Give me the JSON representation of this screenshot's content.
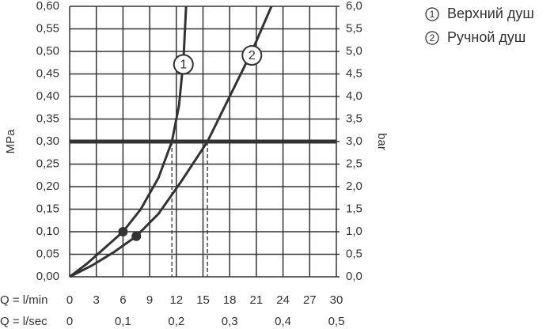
{
  "chart_data": {
    "type": "line",
    "y_label": "MPa",
    "y2_label": "bar",
    "x_label": "Q = l/min",
    "x2_label": "Q = l/sec",
    "xlim": [
      0,
      30
    ],
    "xticks": [
      0,
      3,
      6,
      9,
      12,
      15,
      18,
      21,
      24,
      27,
      30
    ],
    "x2lim": [
      0,
      0.5
    ],
    "x2ticks": [
      0,
      {
        "value": 0.1,
        "label": "0,1"
      },
      {
        "value": 0.2,
        "label": "0,2"
      },
      {
        "value": 0.3,
        "label": "0,3"
      },
      {
        "value": 0.4,
        "label": "0,4"
      },
      {
        "value": 0.5,
        "label": "0,5"
      }
    ],
    "ylim": [
      0,
      0.6
    ],
    "yticks": [
      {
        "value": 0,
        "label": "0,00"
      },
      {
        "value": 0.05,
        "label": "0,05"
      },
      {
        "value": 0.1,
        "label": "0,10"
      },
      {
        "value": 0.15,
        "label": "0,15"
      },
      {
        "value": 0.2,
        "label": "0,20"
      },
      {
        "value": 0.25,
        "label": "0,25"
      },
      {
        "value": 0.3,
        "label": "0,30"
      },
      {
        "value": 0.35,
        "label": "0,35"
      },
      {
        "value": 0.4,
        "label": "0,40"
      },
      {
        "value": 0.45,
        "label": "0,45"
      },
      {
        "value": 0.5,
        "label": "0,50"
      },
      {
        "value": 0.55,
        "label": "0,55"
      },
      {
        "value": 0.6,
        "label": "0,60"
      }
    ],
    "y2lim": [
      0,
      6
    ],
    "y2ticks": [
      {
        "value": 0,
        "label": "0,0"
      },
      {
        "value": 0.5,
        "label": "0,5"
      },
      {
        "value": 1,
        "label": "1,0"
      },
      {
        "value": 1.5,
        "label": "1,5"
      },
      {
        "value": 2,
        "label": "2,0"
      },
      {
        "value": 2.5,
        "label": "2,5"
      },
      {
        "value": 3,
        "label": "3,0"
      },
      {
        "value": 3.5,
        "label": "3,5"
      },
      {
        "value": 4,
        "label": "4,0"
      },
      {
        "value": 4.5,
        "label": "4,5"
      },
      {
        "value": 5,
        "label": "5,0"
      },
      {
        "value": 5.5,
        "label": "5,5"
      },
      {
        "value": 6,
        "label": "6,0"
      }
    ],
    "grid": true,
    "reference_y": 0.3,
    "reference_x": [
      11.5,
      15.5
    ],
    "series": [
      {
        "name": "Верхний душ",
        "label": "1",
        "color": "#333333",
        "x": [
          0,
          2,
          4,
          6,
          8,
          10,
          11.5,
          12.3,
          12.8,
          13.1
        ],
        "values": [
          0,
          0.03,
          0.065,
          0.1,
          0.15,
          0.22,
          0.3,
          0.38,
          0.48,
          0.6
        ],
        "marker": {
          "x": 6,
          "y": 0.1
        }
      },
      {
        "name": "Ручной душ",
        "label": "2",
        "color": "#333333",
        "x": [
          0,
          2.5,
          5,
          7.5,
          10,
          12.5,
          15.5,
          18,
          20.5,
          22.7
        ],
        "values": [
          0,
          0.025,
          0.055,
          0.09,
          0.14,
          0.21,
          0.3,
          0.4,
          0.5,
          0.6
        ],
        "marker": {
          "x": 7.5,
          "y": 0.09
        }
      }
    ]
  }
}
